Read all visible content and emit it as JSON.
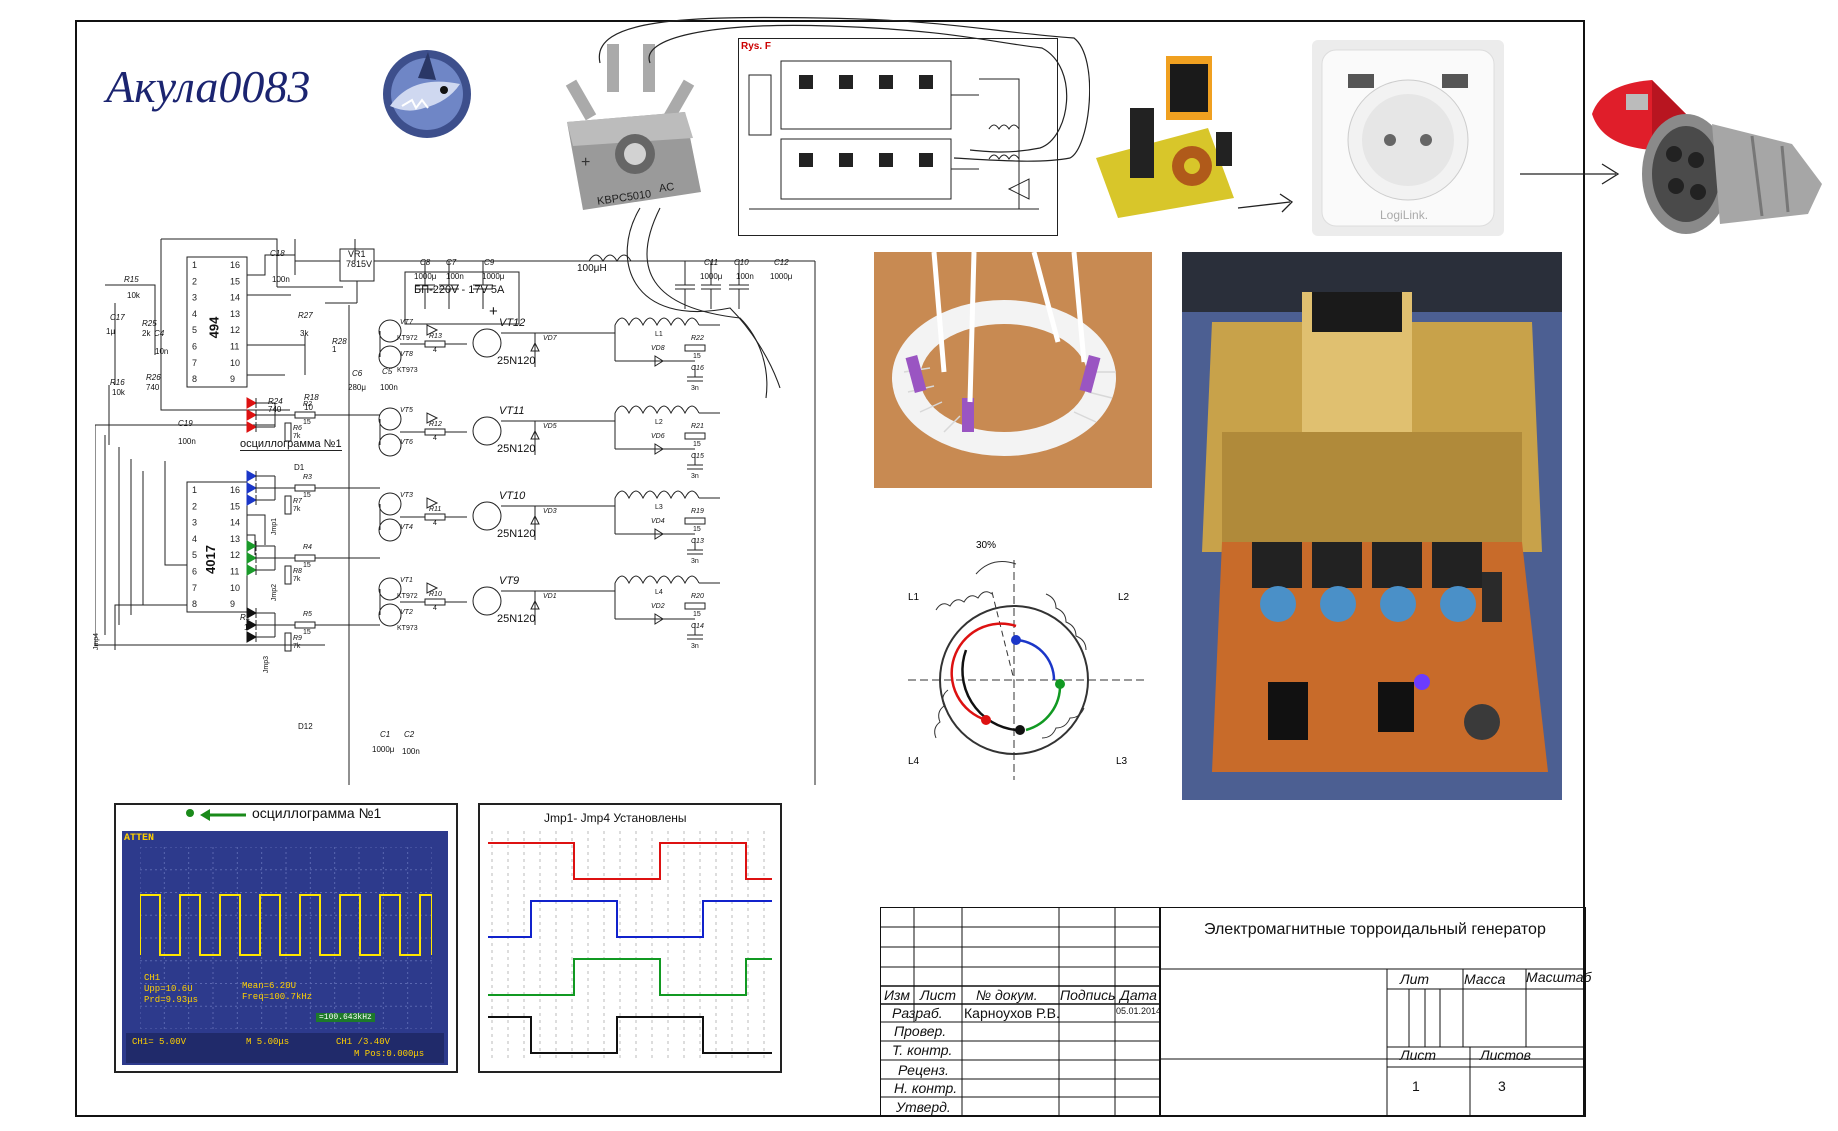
{
  "logo": {
    "text": "Акула0083"
  },
  "top_photos": {
    "bridge_marking": "KBPC5010",
    "bridge_ac": "AC",
    "rys_label": "Rys. F",
    "socket_brand": "LogiLink."
  },
  "schematic": {
    "ic_494": "494",
    "ic_4017": "4017",
    "vr1": "VR1",
    "vr1_part": "7815V",
    "psu": "БП-220V - 17V 5A",
    "inductor": "100μH",
    "osc_tag": "осциллограмма №1",
    "caps": [
      {
        "ref": "C8",
        "val": "1000μ"
      },
      {
        "ref": "C7",
        "val": "100n"
      },
      {
        "ref": "C9",
        "val": "1000μ"
      },
      {
        "ref": "C11",
        "val": "1000μ"
      },
      {
        "ref": "C10",
        "val": "100n"
      },
      {
        "ref": "C12",
        "val": "1000μ"
      },
      {
        "ref": "C18",
        "val": "100n"
      },
      {
        "ref": "C17",
        "val": "1μ"
      },
      {
        "ref": "C4",
        "val": "10n"
      },
      {
        "ref": "C19",
        "val": "100n"
      },
      {
        "ref": "C6",
        "val": "280μ"
      },
      {
        "ref": "C5",
        "val": "100n"
      },
      {
        "ref": "C1",
        "val": "1000μ"
      },
      {
        "ref": "C2",
        "val": "100n"
      }
    ],
    "resistors": [
      {
        "ref": "R15",
        "val": "10k"
      },
      {
        "ref": "R25",
        "val": "2k"
      },
      {
        "ref": "R26",
        "val": "740"
      },
      {
        "ref": "R16",
        "val": "10k"
      },
      {
        "ref": "R27",
        "val": "3k"
      },
      {
        "ref": "R28",
        "val": "1"
      },
      {
        "ref": "R24",
        "val": "740"
      },
      {
        "ref": "R18",
        "val": "10"
      },
      {
        "ref": "R1",
        "val": "1"
      }
    ],
    "drive_stages": [
      {
        "vta": "VT7",
        "vtb": "VT8",
        "type_a": "KT972",
        "type_b": "KT973",
        "r": "R13",
        "rv": "4",
        "igbt": "VT12",
        "model": "25N120",
        "vd": "VD7",
        "l": "L1",
        "vd2": "VD8",
        "rs": "R22",
        "rsv": "15",
        "cs": "C16",
        "csv": "3n",
        "rg": "R2",
        "rgv": "15",
        "rp": "R6",
        "rpv": "7k"
      },
      {
        "vta": "VT5",
        "vtb": "VT6",
        "type_a": "",
        "type_b": "",
        "r": "R12",
        "rv": "4",
        "igbt": "VT11",
        "model": "25N120",
        "vd": "VD5",
        "l": "L2",
        "vd2": "VD6",
        "rs": "R21",
        "rsv": "15",
        "cs": "C15",
        "csv": "3n",
        "rg": "R3",
        "rgv": "15",
        "rp": "R7",
        "rpv": "7k"
      },
      {
        "vta": "VT3",
        "vtb": "VT4",
        "type_a": "",
        "type_b": "",
        "r": "R11",
        "rv": "4",
        "igbt": "VT10",
        "model": "25N120",
        "vd": "VD3",
        "l": "L3",
        "vd2": "VD4",
        "rs": "R19",
        "rsv": "15",
        "cs": "C13",
        "csv": "3n",
        "rg": "R4",
        "rgv": "15",
        "rp": "R8",
        "rpv": "7k"
      },
      {
        "vta": "VT1",
        "vtb": "VT2",
        "type_a": "KT972",
        "type_b": "KT973",
        "r": "R10",
        "rv": "4",
        "igbt": "VT9",
        "model": "25N120",
        "vd": "VD1",
        "l": "L4",
        "vd2": "VD2",
        "rs": "R20",
        "rsv": "15",
        "cs": "C14",
        "csv": "3n",
        "rg": "R5",
        "rgv": "15",
        "rp": "R9",
        "rpv": "7k"
      }
    ],
    "jumpers": [
      "Jmp1",
      "Jmp2",
      "Jmp3",
      "Jmp4"
    ],
    "diode_d1": "D1",
    "diode_d12": "D12"
  },
  "coil_diagram": {
    "angle": "30%",
    "labels": [
      "L1",
      "L2",
      "L3",
      "L4"
    ]
  },
  "oscillogram": {
    "header": "осциллограмма  №1",
    "atten": "ATTEN",
    "ch": "CH1",
    "upp": "Upp=10.6U",
    "prd": "Prd=9.93μs",
    "mean": "Mean=6.20U",
    "freq": "Freq=100.7kHz",
    "freq_box": "=100.643kHz",
    "ch1_scale": "CH1= 5.00V",
    "time_scale": "M 5.00μs",
    "ch1_trig": "CH1 /3.40V",
    "mpos": "M Pos:0.000μs"
  },
  "waveform_panel": {
    "title": "Jmp1- Jmp4 Установлены",
    "colors": [
      "#dd1111",
      "#1122cc",
      "#119922",
      "#111111"
    ]
  },
  "title_block": {
    "title": "Электромагнитные торроидальный генератор",
    "col_izm": "Изм",
    "col_list": "Лист",
    "col_doc": "№ докум.",
    "col_sign": "Подпись",
    "col_date": "Дата",
    "razrab": "Разраб.",
    "author": "Карноухов Р.В.",
    "date": "05.01.2014",
    "prover": "Провер.",
    "tkontr": "Т. контр.",
    "recenz": "Реценз.",
    "nkontr": "Н. контр.",
    "utverd": "Утверд.",
    "lit": "Лит",
    "massa": "Масса",
    "masshtab": "Масштаб",
    "list": "Лист",
    "listov": "Листов",
    "sheet": "1",
    "sheets": "3"
  }
}
